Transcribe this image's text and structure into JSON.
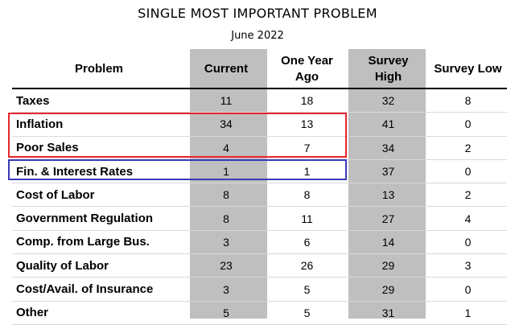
{
  "title": "SINGLE MOST IMPORTANT PROBLEM",
  "subtitle": "June 2022",
  "columns": [
    "Problem",
    "Current",
    "One Year Ago",
    "Survey High",
    "Survey Low"
  ],
  "rows": [
    {
      "problem": "Taxes",
      "current": "11",
      "year_ago": "18",
      "high": "32",
      "low": "8"
    },
    {
      "problem": "Inflation",
      "current": "34",
      "year_ago": "13",
      "high": "41",
      "low": "0"
    },
    {
      "problem": "Poor Sales",
      "current": "4",
      "year_ago": "7",
      "high": "34",
      "low": "2"
    },
    {
      "problem": "Fin. & Interest Rates",
      "current": "1",
      "year_ago": "1",
      "high": "37",
      "low": "0"
    },
    {
      "problem": "Cost of Labor",
      "current": "8",
      "year_ago": "8",
      "high": "13",
      "low": "2"
    },
    {
      "problem": "Government Regulation",
      "current": "8",
      "year_ago": "11",
      "high": "27",
      "low": "4"
    },
    {
      "problem": "Comp. from Large Bus.",
      "current": "3",
      "year_ago": "6",
      "high": "14",
      "low": "0"
    },
    {
      "problem": "Quality of Labor",
      "current": "23",
      "year_ago": "26",
      "high": "29",
      "low": "3"
    },
    {
      "problem": "Cost/Avail. of Insurance",
      "current": "3",
      "year_ago": "5",
      "high": "29",
      "low": "0"
    },
    {
      "problem": "Other",
      "current": "5",
      "year_ago": "5",
      "high": "31",
      "low": "1"
    }
  ],
  "highlights": [
    {
      "rows": [
        "Inflation",
        "Poor Sales"
      ],
      "color": "#e8262b"
    },
    {
      "rows": [
        "Fin. & Interest Rates"
      ],
      "color": "#3a3ab8"
    }
  ],
  "colors": {
    "shaded_column": "#bfbfbf"
  },
  "chart_data": {
    "type": "table",
    "title": "SINGLE MOST IMPORTANT PROBLEM",
    "subtitle": "June 2022",
    "columns": [
      "Problem",
      "Current",
      "One Year Ago",
      "Survey High",
      "Survey Low"
    ],
    "categories": [
      "Taxes",
      "Inflation",
      "Poor Sales",
      "Fin. & Interest Rates",
      "Cost of Labor",
      "Government Regulation",
      "Comp. from Large Bus.",
      "Quality of Labor",
      "Cost/Avail. of Insurance",
      "Other"
    ],
    "series": [
      {
        "name": "Current",
        "values": [
          11,
          34,
          4,
          1,
          8,
          8,
          3,
          23,
          3,
          5
        ]
      },
      {
        "name": "One Year Ago",
        "values": [
          18,
          13,
          7,
          1,
          8,
          11,
          6,
          26,
          5,
          5
        ]
      },
      {
        "name": "Survey High",
        "values": [
          32,
          41,
          34,
          37,
          13,
          27,
          14,
          29,
          29,
          31
        ]
      },
      {
        "name": "Survey Low",
        "values": [
          8,
          0,
          2,
          0,
          2,
          4,
          0,
          3,
          0,
          1
        ]
      }
    ]
  }
}
